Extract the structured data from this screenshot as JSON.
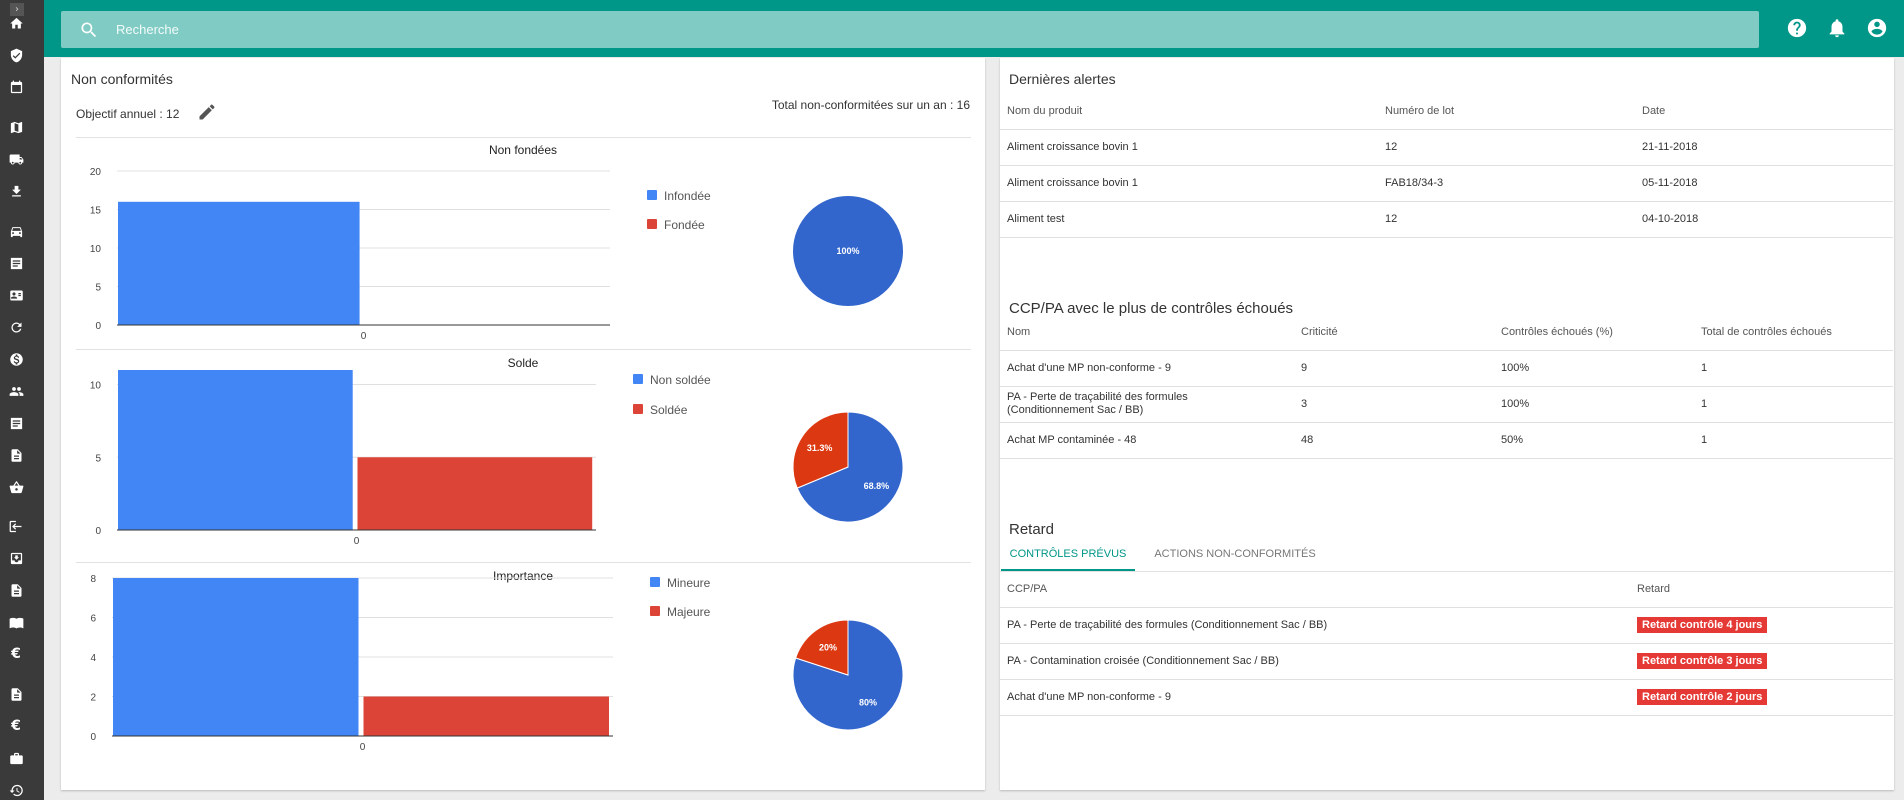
{
  "search": {
    "placeholder": "Recherche"
  },
  "sidebar": {
    "toggle": "›",
    "icons": [
      "home-icon",
      "shield-icon",
      "calendar-icon",
      "map-icon",
      "truck-icon",
      "download-icon",
      "car-icon",
      "list-icon",
      "contact-card-icon",
      "refresh-icon",
      "dollar-icon",
      "people-icon",
      "list-icon",
      "document-icon",
      "basket-icon",
      "login-icon",
      "inbox-icon",
      "document-icon",
      "book-icon",
      "euro-icon",
      "document-icon",
      "euro-icon",
      "briefcase-icon",
      "history-icon"
    ]
  },
  "topbar": {
    "icons": [
      "help-icon",
      "bell-icon",
      "account-icon"
    ]
  },
  "nc": {
    "title": "Non conformités",
    "objective": "Objectif annuel : 12",
    "total": "Total non-conformitées sur un an : 16"
  },
  "chart_data": [
    {
      "type": "bar",
      "title": "Non fondées",
      "categories": [
        "0"
      ],
      "series": [
        {
          "name": "Infondée",
          "values": [
            16
          ],
          "color": "#4285f4"
        },
        {
          "name": "Fondée",
          "values": [
            0
          ],
          "color": "#db4437"
        }
      ],
      "ylim": [
        0,
        20
      ],
      "yticks": [
        0,
        5,
        10,
        15,
        20
      ],
      "legend": "right"
    },
    {
      "type": "pie",
      "slices": [
        {
          "name": "Infondée",
          "value": 100,
          "label": "100%",
          "color": "#3366cc"
        }
      ]
    },
    {
      "type": "bar",
      "title": "Solde",
      "categories": [
        "0"
      ],
      "series": [
        {
          "name": "Non soldée",
          "values": [
            11
          ],
          "color": "#4285f4"
        },
        {
          "name": "Soldée",
          "values": [
            5
          ],
          "color": "#db4437"
        }
      ],
      "ylim": [
        0,
        11
      ],
      "yticks": [
        0,
        5,
        10
      ],
      "legend": "right"
    },
    {
      "type": "pie",
      "slices": [
        {
          "name": "Non soldée",
          "value": 68.8,
          "label": "68.8%",
          "color": "#3366cc"
        },
        {
          "name": "Soldée",
          "value": 31.3,
          "label": "31.3%",
          "color": "#dc3912"
        }
      ]
    },
    {
      "type": "bar",
      "title": "Importance",
      "categories": [
        "0"
      ],
      "series": [
        {
          "name": "Mineure",
          "values": [
            8
          ],
          "color": "#4285f4"
        },
        {
          "name": "Majeure",
          "values": [
            2
          ],
          "color": "#db4437"
        }
      ],
      "ylim": [
        0,
        8
      ],
      "yticks": [
        0,
        2,
        4,
        6,
        8
      ],
      "legend": "right"
    },
    {
      "type": "pie",
      "slices": [
        {
          "name": "Mineure",
          "value": 80,
          "label": "80%",
          "color": "#3366cc"
        },
        {
          "name": "Majeure",
          "value": 20,
          "label": "20%",
          "color": "#dc3912"
        }
      ]
    }
  ],
  "alerts": {
    "title": "Dernières alertes",
    "headers": [
      "Nom du produit",
      "Numéro de lot",
      "Date"
    ],
    "rows": [
      [
        "Aliment croissance bovin 1",
        "12",
        "21-11-2018"
      ],
      [
        "Aliment croissance bovin 1",
        "FAB18/34-3",
        "05-11-2018"
      ],
      [
        "Aliment test",
        "12",
        "04-10-2018"
      ]
    ]
  },
  "ccp": {
    "title": "CCP/PA avec le plus de contrôles échoués",
    "headers": [
      "Nom",
      "Criticité",
      "Contrôles échoués (%)",
      "Total de contrôles échoués"
    ],
    "rows": [
      [
        "Achat d'une MP non-conforme - 9",
        "9",
        "100%",
        "1"
      ],
      [
        "PA - Perte de traçabilité des formules (Conditionnement Sac / BB)",
        "3",
        "100%",
        "1"
      ],
      [
        "Achat MP contaminée - 48",
        "48",
        "50%",
        "1"
      ]
    ]
  },
  "retard": {
    "title": "Retard",
    "tabs": [
      "CONTRÔLES PRÉVUS",
      "ACTIONS NON-CONFORMITÉS"
    ],
    "headers": [
      "CCP/PA",
      "Retard"
    ],
    "rows": [
      [
        "PA - Perte de traçabilité des formules (Conditionnement Sac / BB)",
        "Retard contrôle 4 jours"
      ],
      [
        "PA - Contamination croisée (Conditionnement Sac / BB)",
        "Retard contrôle 3 jours"
      ],
      [
        "Achat d'une MP non-conforme - 9",
        "Retard contrôle 2 jours"
      ]
    ]
  },
  "colors": {
    "teal": "#009688",
    "search": "#80cbc4",
    "badge": "#e53935",
    "tab_active": "#009688",
    "sidebar": "#3a3a3a"
  }
}
